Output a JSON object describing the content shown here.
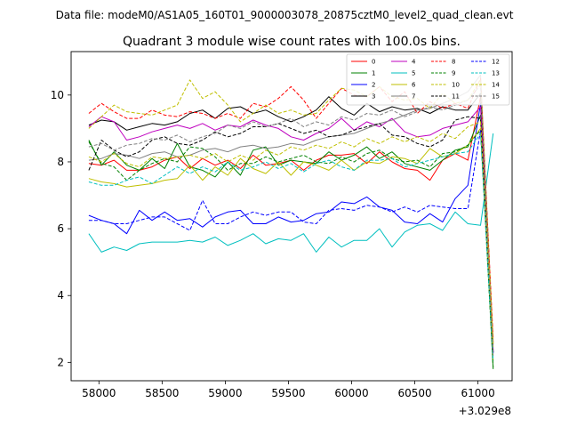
{
  "suptitle": "Data file: modeM0/AS1A05_160T01_9000003078_20875cztM0_level2_quad_clean.evt",
  "chart_data": {
    "type": "line",
    "title": "Quadrant 3 module wise count rates with 100.0s bins.",
    "xlabel": "",
    "ylabel": "",
    "x_offset_label": "+3.029e8",
    "x_offset": 302900000,
    "xlim": [
      57780,
      61270
    ],
    "ylim": [
      1.45,
      11.3
    ],
    "xticks": [
      58000,
      58500,
      59000,
      59500,
      60000,
      60500,
      61000
    ],
    "xtick_labels": [
      "58000",
      "58500",
      "59000",
      "59500",
      "60000",
      "60500",
      "61000"
    ],
    "yticks": [
      2,
      4,
      6,
      8,
      10
    ],
    "ytick_labels": [
      "2",
      "4",
      "6",
      "8",
      "10"
    ],
    "grid": false,
    "legend_position": "top-right",
    "legend_columns": 4,
    "x": [
      57920,
      58020,
      58120,
      58220,
      58320,
      58420,
      58520,
      58620,
      58720,
      58820,
      58920,
      59020,
      59120,
      59220,
      59320,
      59420,
      59520,
      59620,
      59720,
      59820,
      59920,
      60020,
      60120,
      60220,
      60320,
      60420,
      60520,
      60620,
      60720,
      60820,
      60920,
      61020,
      61120
    ],
    "series": [
      {
        "name": "0",
        "color": "#ff0000",
        "dash": "solid",
        "values": [
          7.95,
          7.9,
          8.05,
          7.75,
          7.75,
          7.85,
          8.05,
          8.15,
          7.8,
          8.1,
          7.9,
          8.05,
          7.8,
          8.2,
          7.9,
          7.95,
          8.05,
          7.75,
          8.05,
          8.2,
          8.2,
          8.25,
          7.95,
          8.3,
          8.0,
          7.8,
          7.75,
          7.45,
          8.05,
          8.25,
          8.05,
          9.95,
          2.6
        ]
      },
      {
        "name": "1",
        "color": "#008000",
        "dash": "solid",
        "values": [
          8.65,
          7.9,
          8.3,
          7.9,
          7.75,
          8.1,
          7.8,
          8.55,
          7.85,
          7.75,
          7.55,
          8.0,
          7.6,
          8.35,
          8.45,
          7.9,
          8.05,
          8.0,
          7.95,
          8.3,
          8.05,
          8.2,
          8.45,
          8.1,
          8.3,
          7.95,
          7.85,
          7.75,
          8.05,
          8.35,
          8.45,
          9.4,
          1.8
        ]
      },
      {
        "name": "2",
        "color": "#0000ff",
        "dash": "solid",
        "values": [
          6.4,
          6.25,
          6.15,
          5.85,
          6.55,
          6.25,
          6.5,
          6.25,
          6.3,
          6.05,
          6.35,
          6.5,
          6.55,
          6.15,
          6.15,
          6.35,
          6.2,
          6.25,
          6.45,
          6.5,
          6.8,
          6.75,
          6.95,
          6.65,
          6.55,
          6.2,
          6.15,
          6.45,
          6.2,
          6.9,
          7.3,
          9.75,
          2.3
        ]
      },
      {
        "name": "3",
        "color": "#000000",
        "dash": "solid",
        "values": [
          9.1,
          9.25,
          9.2,
          8.95,
          9.05,
          9.15,
          9.1,
          9.2,
          9.45,
          9.55,
          9.3,
          9.6,
          9.65,
          9.45,
          9.55,
          9.35,
          9.2,
          9.35,
          9.55,
          9.95,
          9.6,
          9.4,
          9.75,
          9.5,
          9.65,
          9.55,
          9.6,
          9.45,
          9.65,
          9.55,
          9.55,
          10.05,
          2.3
        ]
      },
      {
        "name": "4",
        "color": "#bf00bf",
        "dash": "solid",
        "values": [
          9.05,
          9.35,
          9.2,
          8.65,
          8.75,
          8.9,
          9.0,
          9.1,
          9.0,
          9.15,
          8.95,
          9.1,
          9.05,
          9.25,
          9.1,
          9.0,
          8.75,
          8.65,
          8.85,
          9.0,
          9.3,
          8.95,
          9.2,
          9.05,
          9.3,
          8.9,
          8.75,
          8.8,
          9.0,
          9.1,
          9.2,
          9.65,
          2.35
        ]
      },
      {
        "name": "5",
        "color": "#00bfbf",
        "dash": "solid",
        "values": [
          5.85,
          5.3,
          5.45,
          5.35,
          5.55,
          5.6,
          5.6,
          5.6,
          5.65,
          5.6,
          5.75,
          5.5,
          5.65,
          5.85,
          5.55,
          5.7,
          5.65,
          5.85,
          5.3,
          5.75,
          5.45,
          5.65,
          5.65,
          6.0,
          5.45,
          5.9,
          6.1,
          6.15,
          5.95,
          6.5,
          6.15,
          6.1,
          8.85
        ]
      },
      {
        "name": "6",
        "color": "#bfbf00",
        "dash": "solid",
        "values": [
          7.5,
          7.4,
          7.35,
          7.25,
          7.3,
          7.35,
          7.45,
          7.5,
          7.9,
          7.45,
          7.85,
          7.6,
          8.1,
          7.8,
          7.65,
          8.0,
          7.6,
          8.0,
          7.9,
          7.75,
          8.05,
          7.75,
          8.0,
          7.95,
          8.15,
          8.1,
          7.95,
          8.4,
          8.15,
          8.25,
          8.5,
          9.0,
          2.05
        ]
      },
      {
        "name": "7",
        "color": "#808080",
        "dash": "solid",
        "values": [
          8.05,
          8.1,
          8.25,
          8.2,
          8.1,
          8.25,
          8.3,
          8.15,
          8.2,
          8.35,
          8.4,
          8.3,
          8.45,
          8.5,
          8.4,
          8.45,
          8.55,
          8.5,
          8.65,
          8.75,
          8.8,
          8.85,
          9.0,
          9.15,
          9.25,
          9.4,
          9.55,
          9.6,
          9.75,
          9.9,
          10.1,
          10.6,
          2.55
        ]
      },
      {
        "name": "8",
        "color": "#ff0000",
        "dash": "dashed",
        "values": [
          9.45,
          9.75,
          9.5,
          9.3,
          9.3,
          9.55,
          9.4,
          9.35,
          9.5,
          9.45,
          9.3,
          9.45,
          9.3,
          9.75,
          9.65,
          9.9,
          10.25,
          9.85,
          9.3,
          9.75,
          10.2,
          10.0,
          9.95,
          10.25,
          9.8,
          10.1,
          9.45,
          9.8,
          9.6,
          9.75,
          9.6,
          10.5,
          2.7
        ]
      },
      {
        "name": "9",
        "color": "#008000",
        "dash": "dashed",
        "values": [
          8.6,
          7.95,
          7.85,
          7.45,
          7.75,
          7.95,
          8.1,
          8.0,
          8.45,
          8.4,
          8.15,
          7.75,
          7.95,
          7.95,
          8.15,
          8.0,
          8.1,
          8.2,
          8.0,
          7.95,
          8.15,
          8.0,
          8.25,
          8.35,
          8.1,
          8.0,
          8.05,
          7.85,
          8.25,
          8.3,
          8.5,
          8.95,
          1.85
        ]
      },
      {
        "name": "10",
        "color": "#bfbf00",
        "dash": "dashed",
        "values": [
          9.0,
          9.35,
          9.7,
          9.5,
          9.45,
          9.4,
          9.55,
          9.7,
          10.45,
          9.9,
          10.1,
          9.7,
          9.2,
          9.45,
          9.7,
          9.45,
          9.55,
          9.4,
          9.45,
          9.85,
          10.2,
          10.15,
          9.95,
          10.25,
          9.95,
          9.85,
          9.9,
          9.6,
          10.05,
          9.75,
          9.85,
          10.45,
          2.55
        ]
      },
      {
        "name": "11",
        "color": "#000000",
        "dash": "dashed",
        "values": [
          7.75,
          8.65,
          8.35,
          8.15,
          8.3,
          8.65,
          8.75,
          8.55,
          8.5,
          8.65,
          8.9,
          8.75,
          8.85,
          9.05,
          9.05,
          9.15,
          9.0,
          8.85,
          8.95,
          8.75,
          8.8,
          8.95,
          9.05,
          9.15,
          8.8,
          8.75,
          8.55,
          8.45,
          8.65,
          9.25,
          9.35,
          9.3,
          2.25
        ]
      },
      {
        "name": "12",
        "color": "#0000ff",
        "dash": "dashed",
        "values": [
          6.25,
          6.25,
          6.15,
          6.15,
          6.25,
          6.35,
          6.35,
          6.15,
          5.95,
          6.85,
          6.15,
          6.15,
          6.35,
          6.5,
          6.4,
          6.5,
          6.5,
          6.2,
          6.15,
          6.55,
          6.6,
          6.55,
          6.7,
          6.65,
          6.5,
          6.65,
          6.5,
          6.7,
          6.65,
          6.6,
          6.6,
          8.95,
          2.25
        ]
      },
      {
        "name": "13",
        "color": "#00bfbf",
        "dash": "dashed",
        "values": [
          7.4,
          7.3,
          7.3,
          7.45,
          7.55,
          7.35,
          7.6,
          7.85,
          7.65,
          7.85,
          7.7,
          8.0,
          7.75,
          7.85,
          8.0,
          7.8,
          7.95,
          7.7,
          7.95,
          8.05,
          7.85,
          7.75,
          8.05,
          8.05,
          8.1,
          7.85,
          7.95,
          8.05,
          8.15,
          8.25,
          8.3,
          8.85,
          2.05
        ]
      },
      {
        "name": "14",
        "color": "#bfbf00",
        "dash": "dashed",
        "values": [
          8.15,
          8.0,
          8.25,
          7.95,
          7.85,
          8.15,
          8.1,
          8.15,
          8.2,
          8.1,
          8.25,
          8.0,
          8.2,
          8.05,
          8.35,
          8.2,
          8.45,
          8.35,
          8.5,
          8.4,
          8.6,
          8.45,
          8.7,
          8.55,
          8.75,
          8.6,
          8.75,
          8.6,
          8.85,
          8.7,
          9.05,
          9.2,
          2.45
        ]
      },
      {
        "name": "15",
        "color": "#808080",
        "dash": "dashed",
        "values": [
          8.45,
          8.55,
          8.35,
          8.5,
          8.55,
          8.7,
          8.65,
          8.8,
          8.6,
          8.75,
          8.85,
          9.1,
          9.0,
          9.2,
          9.05,
          9.15,
          9.3,
          9.05,
          9.2,
          9.1,
          9.35,
          9.25,
          9.45,
          9.4,
          9.55,
          9.35,
          9.5,
          9.65,
          9.55,
          9.7,
          9.85,
          10.3,
          2.2
        ]
      }
    ]
  }
}
